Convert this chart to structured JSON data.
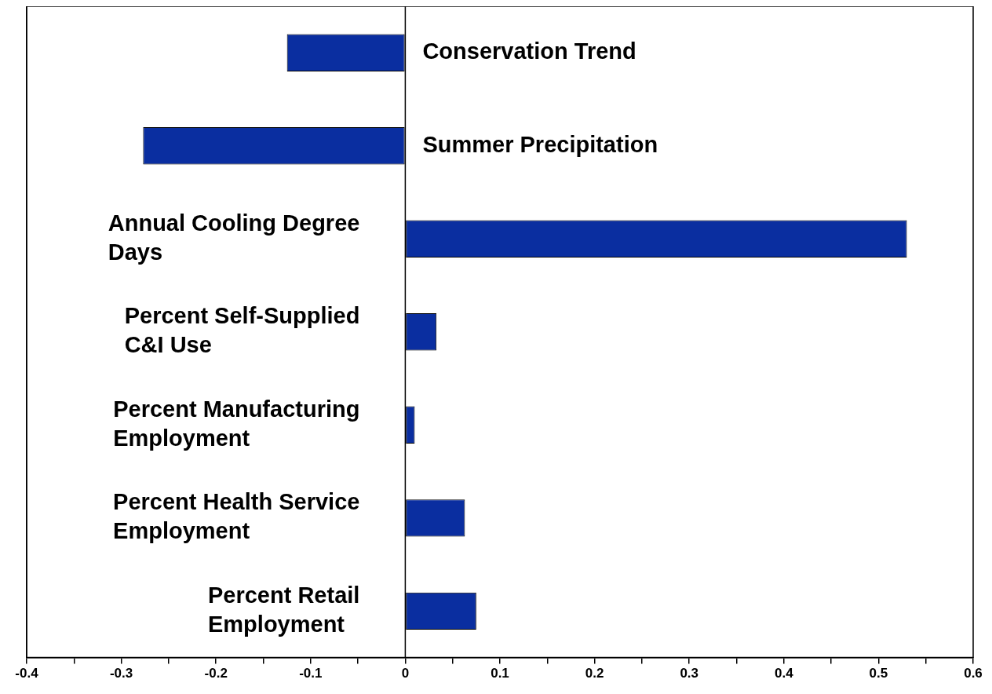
{
  "chart_data": {
    "type": "bar",
    "orientation": "horizontal",
    "categories": [
      "Conservation Trend",
      "Summer Precipitation",
      "Annual Cooling Degree Days",
      "Percent Self-Supplied C&I Use",
      "Percent Manufacturing Employment",
      "Percent Health Service Employment",
      "Percent Retail Employment"
    ],
    "values": [
      -0.125,
      -0.277,
      0.53,
      0.033,
      0.01,
      0.063,
      0.075
    ],
    "color": "#0a2ea0",
    "xlim": [
      -0.4,
      0.6
    ],
    "xticks": [
      -0.4,
      {
        "value": -0.35,
        "label": null
      },
      -0.3,
      {
        "value": -0.25,
        "label": null
      },
      -0.2,
      {
        "value": -0.15,
        "label": null
      },
      -0.1,
      {
        "value": -0.05,
        "label": null
      },
      0,
      {
        "value": 0.05,
        "label": null
      },
      0.1,
      {
        "value": 0.15,
        "label": null
      },
      0.2,
      {
        "value": 0.25,
        "label": null
      },
      0.3,
      {
        "value": 0.35,
        "label": null
      },
      0.4,
      {
        "value": 0.45,
        "label": null
      },
      0.5,
      {
        "value": 0.55,
        "label": null
      },
      0.6
    ],
    "grid": false,
    "legend": false,
    "tick_labels": "x"
  }
}
